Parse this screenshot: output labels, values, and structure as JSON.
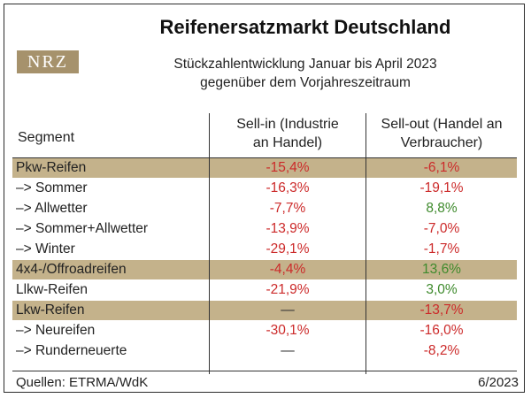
{
  "logo_text": "NRZ",
  "chart_data": {
    "type": "table",
    "title": "Reifenersatzmarkt Deutschland",
    "subtitle_lines": [
      "Stückzahlentwicklung Januar bis April 2023",
      "gegenüber dem Vorjahreszeitraum"
    ],
    "columns": {
      "segment": "Segment",
      "sell_in": [
        "Sell-in (Industrie",
        "an Handel)"
      ],
      "sell_out": [
        "Sell-out (Handel an",
        "Verbraucher)"
      ]
    },
    "rows": [
      {
        "label": "Pkw-Reifen",
        "band": true,
        "sell_in": "-15,4%",
        "sell_in_value": -15.4,
        "sell_out": "-6,1%",
        "sell_out_value": -6.1
      },
      {
        "label": "–> Sommer",
        "band": false,
        "sell_in": "-16,3%",
        "sell_in_value": -16.3,
        "sell_out": "-19,1%",
        "sell_out_value": -19.1
      },
      {
        "label": "–> Allwetter",
        "band": false,
        "sell_in": "-7,7%",
        "sell_in_value": -7.7,
        "sell_out": "8,8%",
        "sell_out_value": 8.8
      },
      {
        "label": "–> Sommer+Allwetter",
        "band": false,
        "sell_in": "-13,9%",
        "sell_in_value": -13.9,
        "sell_out": "-7,0%",
        "sell_out_value": -7.0
      },
      {
        "label": "–> Winter",
        "band": false,
        "sell_in": "-29,1%",
        "sell_in_value": -29.1,
        "sell_out": "-1,7%",
        "sell_out_value": -1.7
      },
      {
        "label": "4x4-/Offroadreifen",
        "band": true,
        "sell_in": "-4,4%",
        "sell_in_value": -4.4,
        "sell_out": "13,6%",
        "sell_out_value": 13.6
      },
      {
        "label": "Llkw-Reifen",
        "band": false,
        "sell_in": "-21,9%",
        "sell_in_value": -21.9,
        "sell_out": "3,0%",
        "sell_out_value": 3.0
      },
      {
        "label": "Lkw-Reifen",
        "band": true,
        "sell_in": "—",
        "sell_in_value": null,
        "sell_out": "-13,7%",
        "sell_out_value": -13.7
      },
      {
        "label": "–> Neureifen",
        "band": false,
        "sell_in": "-30,1%",
        "sell_in_value": -30.1,
        "sell_out": "-16,0%",
        "sell_out_value": -16.0
      },
      {
        "label": "–> Runderneuerte",
        "band": false,
        "sell_in": "—",
        "sell_in_value": null,
        "sell_out": "-8,2%",
        "sell_out_value": -8.2
      }
    ],
    "colors": {
      "band": "#c4b28b",
      "negative": "#cc2a2a",
      "positive": "#3e8a2c"
    }
  },
  "footer": {
    "source": "Quellen: ETRMA/WdK",
    "date": "6/2023"
  }
}
